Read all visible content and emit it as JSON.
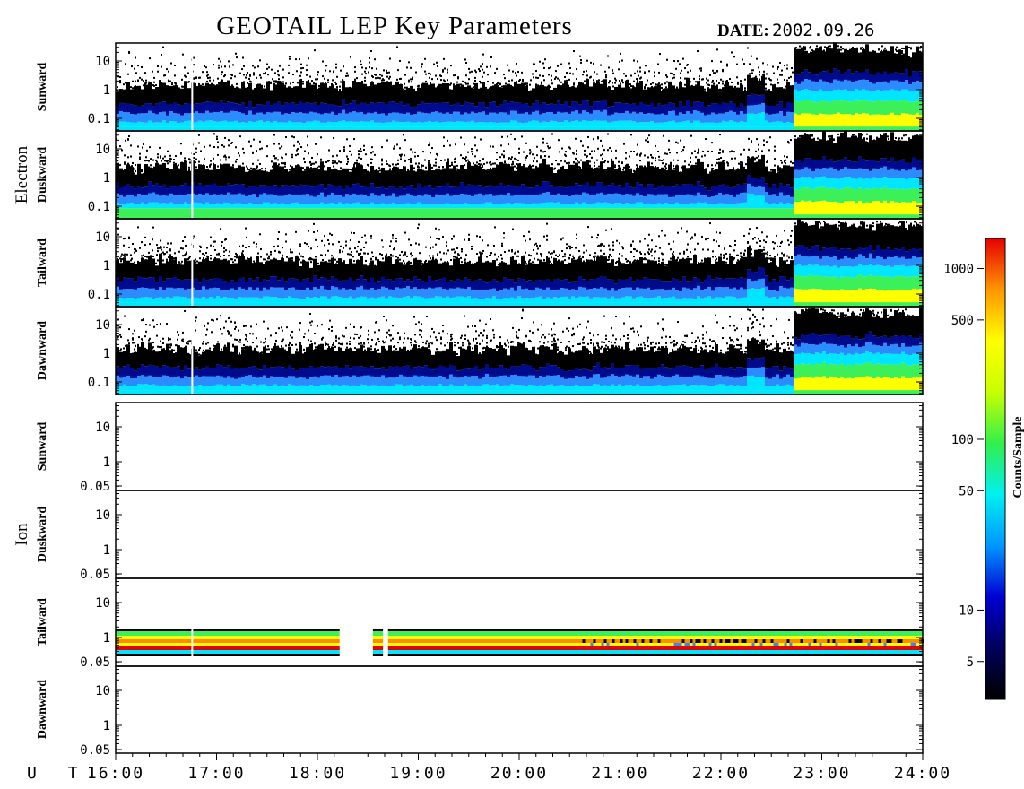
{
  "title": "GEOTAIL LEP Key Parameters",
  "date_label": "DATE:",
  "date_value": "2002.09.26",
  "x_axis_label": "U T",
  "chart_data": {
    "type": "heatmap",
    "x_ticks": [
      "16:00",
      "17:00",
      "18:00",
      "19:00",
      "20:00",
      "21:00",
      "22:00",
      "23:00",
      "24:00"
    ],
    "x_range_hours": [
      16,
      24
    ],
    "species": [
      {
        "name": "Electron",
        "panels": [
          {
            "label": "Sunward",
            "y_ticks": [
              "10",
              "1",
              "0.1"
            ]
          },
          {
            "label": "Duskward",
            "y_ticks": [
              "10",
              "1",
              "0.1"
            ]
          },
          {
            "label": "Tailward",
            "y_ticks": [
              "10",
              "1",
              "0.1"
            ]
          },
          {
            "label": "Dawnward",
            "y_ticks": [
              "10",
              "1",
              "0.1"
            ]
          }
        ]
      },
      {
        "name": "Ion",
        "panels": [
          {
            "label": "Sunward",
            "y_ticks": [
              "10",
              "1",
              "0.05"
            ]
          },
          {
            "label": "Duskward",
            "y_ticks": [
              "10",
              "1",
              "0.05"
            ]
          },
          {
            "label": "Tailward",
            "y_ticks": [
              "10",
              "1",
              "0.05"
            ]
          },
          {
            "label": "Dawnward",
            "y_ticks": [
              "10",
              "1",
              "0.05"
            ]
          }
        ]
      }
    ],
    "colorbar": {
      "label": "Counts/Sample",
      "scale": "log",
      "range": [
        3,
        1500
      ],
      "ticks": [
        "1000",
        "500",
        "100",
        "50",
        "10",
        "5"
      ],
      "tick_values": [
        1000,
        500,
        100,
        50,
        10,
        5
      ]
    },
    "electron_data_gap_hours": 16.75,
    "ion_tailward_data_hours": [
      [
        16.0,
        18.22
      ],
      [
        18.55,
        18.65
      ],
      [
        18.7,
        24.0
      ]
    ],
    "ion_panels_with_data": [
      "Tailward"
    ]
  },
  "colors": {
    "background": "#ffffff",
    "frame": "#000000",
    "dense_black": "#000000",
    "low_flux": "#000a8c",
    "mid_flux": "#2a8cff",
    "cyan": "#00e6ff",
    "green": "#3cf05a",
    "yellow": "#ffff00",
    "orange": "#ff8c00",
    "red": "#e60000",
    "colorbar_stops": [
      "#000000",
      "#00005a",
      "#0000d2",
      "#0096ff",
      "#00f0f0",
      "#32f04b",
      "#c8ff00",
      "#ffff00",
      "#ff9600",
      "#e60000"
    ]
  }
}
